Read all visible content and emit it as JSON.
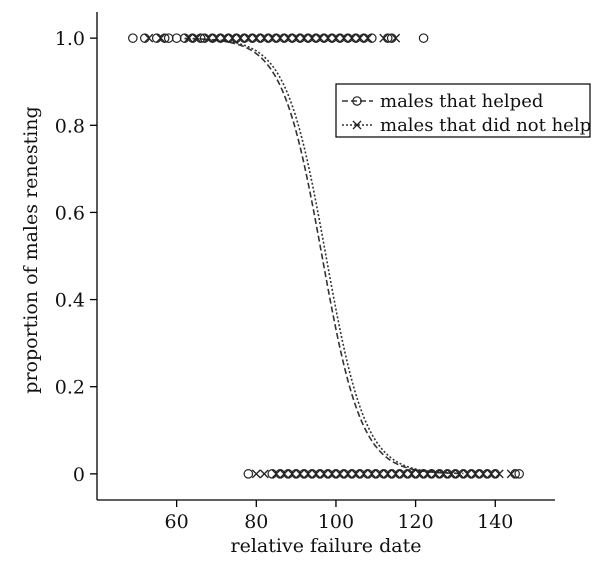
{
  "chart_data": {
    "type": "scatter",
    "title": "",
    "xlabel": "relative failure date",
    "ylabel": "proportion of males renesting",
    "xlim": [
      40,
      155
    ],
    "ylim": [
      -0.06,
      1.06
    ],
    "x_ticks": [
      60,
      80,
      100,
      120,
      140
    ],
    "y_ticks": [
      0,
      0.2,
      0.4,
      0.6,
      0.8,
      1.0
    ],
    "x_tick_labels": [
      "60",
      "80",
      "100",
      "120",
      "140"
    ],
    "y_tick_labels": [
      "0",
      "0.2",
      "0.4",
      "0.6",
      "0.8",
      "1.0"
    ],
    "grid": false,
    "legend_position": "top-right",
    "series": [
      {
        "name": "males that helped",
        "marker": "circle",
        "line_style": "dashed",
        "fit": {
          "type": "logistic",
          "midpoint": 96.5,
          "slope": 0.2
        },
        "points_y1": [
          49,
          52,
          55,
          57,
          58,
          60,
          62,
          64,
          66,
          67,
          69,
          71,
          73,
          75,
          77,
          79,
          81,
          83,
          85,
          87,
          89,
          91,
          93,
          95,
          97,
          99,
          101,
          103,
          105,
          107,
          109,
          113,
          114,
          122
        ],
        "points_y0": [
          78,
          84,
          86,
          88,
          90,
          92,
          94,
          96,
          98,
          100,
          102,
          104,
          106,
          108,
          110,
          112,
          114,
          116,
          118,
          120,
          122,
          124,
          126,
          128,
          130,
          132,
          134,
          136,
          138,
          140,
          145,
          146
        ]
      },
      {
        "name": "males that did not help",
        "marker": "cross",
        "line_style": "dotted",
        "fit": {
          "type": "logistic",
          "midpoint": 97.5,
          "slope": 0.2
        },
        "points_y1": [
          53,
          56,
          63,
          65,
          68,
          70,
          72,
          74,
          76,
          78,
          80,
          82,
          84,
          86,
          88,
          90,
          92,
          94,
          96,
          98,
          100,
          102,
          104,
          106,
          108,
          112,
          115
        ],
        "points_y0": [
          80,
          82,
          85,
          87,
          89,
          91,
          93,
          95,
          97,
          99,
          101,
          103,
          105,
          107,
          109,
          111,
          113,
          115,
          117,
          119,
          121,
          123,
          125,
          127,
          129,
          131,
          133,
          135,
          137,
          139,
          141,
          144
        ]
      }
    ]
  }
}
